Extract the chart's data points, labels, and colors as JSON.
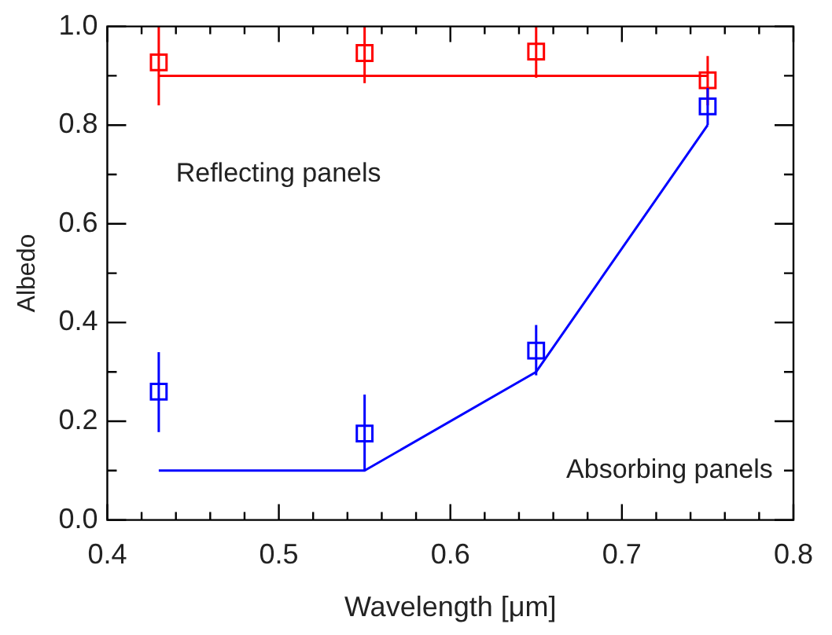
{
  "chart_data": {
    "type": "scatter",
    "xlabel": "Wavelength [μm]",
    "ylabel": "Albedo",
    "xlim": [
      0.4,
      0.8
    ],
    "xticks": [
      0.4,
      {
        "value": 0.42,
        "label": null
      },
      {
        "value": 0.44,
        "label": null
      },
      {
        "value": 0.46,
        "label": null
      },
      {
        "value": 0.48,
        "label": null
      },
      0.5,
      {
        "value": 0.52,
        "label": null
      },
      {
        "value": 0.54,
        "label": null
      },
      {
        "value": 0.56,
        "label": null
      },
      {
        "value": 0.58,
        "label": null
      },
      0.6,
      {
        "value": 0.62,
        "label": null
      },
      {
        "value": 0.64,
        "label": null
      },
      {
        "value": 0.66,
        "label": null
      },
      {
        "value": 0.68,
        "label": null
      },
      0.7,
      {
        "value": 0.72,
        "label": null
      },
      {
        "value": 0.74,
        "label": null
      },
      {
        "value": 0.76,
        "label": null
      },
      {
        "value": 0.78,
        "label": null
      },
      0.8
    ],
    "ylim": [
      0,
      1
    ],
    "yticks": [
      {
        "value": 0,
        "label": "0.0"
      },
      {
        "value": 0.1,
        "label": null
      },
      0.2,
      {
        "value": 0.3,
        "label": null
      },
      0.4,
      {
        "value": 0.5,
        "label": null
      },
      0.6,
      {
        "value": 0.7,
        "label": null
      },
      0.8,
      {
        "value": 0.9,
        "label": null
      },
      {
        "value": 1,
        "label": "1.0"
      }
    ],
    "grid": false,
    "legend": false,
    "series": [
      {
        "color": "#ff0000",
        "marker": "square",
        "x": [
          0.43,
          0.55,
          0.65,
          0.75
        ],
        "values": [
          0.927,
          0.946,
          0.949,
          0.891
        ],
        "errors": [
          [
            0.84,
            1.0
          ],
          [
            0.885,
            1.0
          ],
          [
            0.896,
            1.0
          ],
          [
            0.84,
            0.94
          ]
        ]
      },
      {
        "type": "line",
        "color": "#ff0000",
        "marker": "none",
        "x": [
          0.43,
          0.75
        ],
        "values": [
          0.9,
          0.9
        ]
      },
      {
        "color": "#0000ff",
        "marker": "square",
        "x": [
          0.43,
          0.55,
          0.65,
          0.75
        ],
        "values": [
          0.26,
          0.175,
          0.343,
          0.838
        ],
        "errors": [
          [
            0.178,
            0.34
          ],
          [
            0.099,
            0.254
          ],
          [
            0.293,
            0.395
          ],
          [
            0.8,
            0.875
          ]
        ]
      },
      {
        "type": "line",
        "color": "#0000ff",
        "marker": "none",
        "x": [
          0.43,
          0.55,
          0.65,
          0.75
        ],
        "values": [
          0.1,
          0.1,
          0.3,
          0.8
        ]
      }
    ],
    "annotations": [
      "Reflecting panels",
      "Absorbing panels"
    ]
  }
}
